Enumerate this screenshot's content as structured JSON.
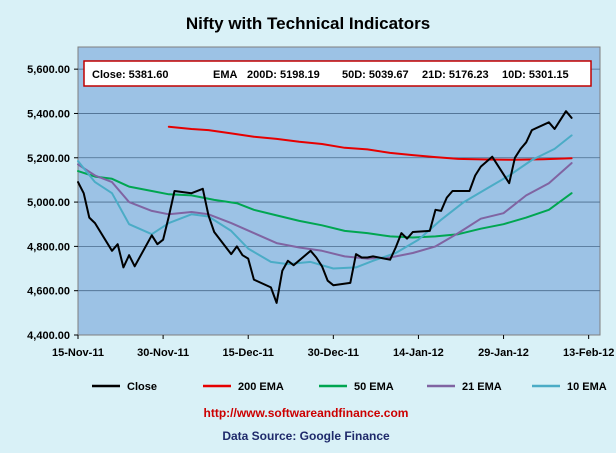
{
  "title": "Nifty with Technical Indicators",
  "info_box": {
    "close": "Close: 5381.60",
    "ema": "EMA",
    "d200": "200D: 5198.19",
    "d50": "50D: 5039.67",
    "d21": "21D: 5176.23",
    "d10": "10D: 5301.15"
  },
  "footer": {
    "url": "http://www.softwareandfinance.com",
    "source": "Data Source: Google Finance"
  },
  "colors": {
    "background": "#d9f1f7",
    "plot_area": "#9cc2e5",
    "grid": "#4a6b8c",
    "close": "#000000",
    "ema200": "#e60000",
    "ema50": "#00a651",
    "ema21": "#8064a2",
    "ema10": "#4bacc6",
    "info_border": "#c00000"
  },
  "chart_data": {
    "type": "line",
    "title": "Nifty with Technical Indicators",
    "xlabel": "",
    "ylabel": "",
    "ylim": [
      4400,
      5700
    ],
    "xlim": [
      "2011-11-15",
      "2012-02-15"
    ],
    "yticks": [
      4400,
      4600,
      4800,
      5000,
      5200,
      5400,
      5600
    ],
    "ytick_labels": [
      "4,400.00",
      "4,600.00",
      "4,800.00",
      "5,000.00",
      "5,200.00",
      "5,400.00",
      "5,600.00"
    ],
    "xtick_dates": [
      "2011-11-15",
      "2011-11-30",
      "2011-12-15",
      "2011-12-30",
      "2012-01-14",
      "2012-01-29",
      "2012-02-13"
    ],
    "xtick_labels": [
      "15-Nov-11",
      "30-Nov-11",
      "15-Dec-11",
      "30-Dec-11",
      "14-Jan-12",
      "29-Jan-12",
      "13-Feb-12"
    ],
    "grid": true,
    "legend_position": "bottom",
    "series": [
      {
        "name": "Close",
        "color_key": "close",
        "points": [
          [
            "2011-11-15",
            5090
          ],
          [
            "2011-11-16",
            5040
          ],
          [
            "2011-11-17",
            4930
          ],
          [
            "2011-11-18",
            4905
          ],
          [
            "2011-11-21",
            4780
          ],
          [
            "2011-11-22",
            4810
          ],
          [
            "2011-11-23",
            4705
          ],
          [
            "2011-11-24",
            4760
          ],
          [
            "2011-11-25",
            4710
          ],
          [
            "2011-11-28",
            4850
          ],
          [
            "2011-11-29",
            4810
          ],
          [
            "2011-11-30",
            4830
          ],
          [
            "2011-12-01",
            4935
          ],
          [
            "2011-12-02",
            5050
          ],
          [
            "2011-12-05",
            5040
          ],
          [
            "2011-12-07",
            5060
          ],
          [
            "2011-12-08",
            4940
          ],
          [
            "2011-12-09",
            4865
          ],
          [
            "2011-12-12",
            4765
          ],
          [
            "2011-12-13",
            4800
          ],
          [
            "2011-12-14",
            4760
          ],
          [
            "2011-12-15",
            4745
          ],
          [
            "2011-12-16",
            4650
          ],
          [
            "2011-12-19",
            4615
          ],
          [
            "2011-12-20",
            4545
          ],
          [
            "2011-12-21",
            4690
          ],
          [
            "2011-12-22",
            4735
          ],
          [
            "2011-12-23",
            4715
          ],
          [
            "2011-12-26",
            4780
          ],
          [
            "2011-12-27",
            4750
          ],
          [
            "2011-12-28",
            4710
          ],
          [
            "2011-12-29",
            4645
          ],
          [
            "2011-12-30",
            4625
          ],
          [
            "2012-01-02",
            4635
          ],
          [
            "2012-01-03",
            4765
          ],
          [
            "2012-01-04",
            4750
          ],
          [
            "2012-01-05",
            4750
          ],
          [
            "2012-01-06",
            4755
          ],
          [
            "2012-01-09",
            4740
          ],
          [
            "2012-01-10",
            4795
          ],
          [
            "2012-01-11",
            4860
          ],
          [
            "2012-01-12",
            4835
          ],
          [
            "2012-01-13",
            4865
          ],
          [
            "2012-01-16",
            4870
          ],
          [
            "2012-01-17",
            4965
          ],
          [
            "2012-01-18",
            4960
          ],
          [
            "2012-01-19",
            5020
          ],
          [
            "2012-01-20",
            5050
          ],
          [
            "2012-01-23",
            5050
          ],
          [
            "2012-01-24",
            5120
          ],
          [
            "2012-01-25",
            5160
          ],
          [
            "2012-01-27",
            5205
          ],
          [
            "2012-01-30",
            5085
          ],
          [
            "2012-01-31",
            5200
          ],
          [
            "2012-02-01",
            5240
          ],
          [
            "2012-02-02",
            5270
          ],
          [
            "2012-02-03",
            5325
          ],
          [
            "2012-02-06",
            5360
          ],
          [
            "2012-02-07",
            5330
          ],
          [
            "2012-02-08",
            5370
          ],
          [
            "2012-02-09",
            5410
          ],
          [
            "2012-02-10",
            5380
          ]
        ]
      },
      {
        "name": "200 EMA",
        "color_key": "ema200",
        "points": [
          [
            "2011-12-01",
            5340
          ],
          [
            "2011-12-05",
            5330
          ],
          [
            "2011-12-08",
            5325
          ],
          [
            "2011-12-12",
            5310
          ],
          [
            "2011-12-16",
            5295
          ],
          [
            "2011-12-20",
            5285
          ],
          [
            "2011-12-24",
            5272
          ],
          [
            "2011-12-28",
            5262
          ],
          [
            "2012-01-01",
            5245
          ],
          [
            "2012-01-05",
            5238
          ],
          [
            "2012-01-09",
            5222
          ],
          [
            "2012-01-13",
            5212
          ],
          [
            "2012-01-17",
            5203
          ],
          [
            "2012-01-21",
            5195
          ],
          [
            "2012-01-26",
            5192
          ],
          [
            "2012-01-31",
            5191
          ],
          [
            "2012-02-05",
            5193
          ],
          [
            "2012-02-10",
            5198
          ]
        ]
      },
      {
        "name": "50 EMA",
        "color_key": "ema50",
        "points": [
          [
            "2011-11-15",
            5140
          ],
          [
            "2011-11-18",
            5115
          ],
          [
            "2011-11-21",
            5105
          ],
          [
            "2011-11-24",
            5070
          ],
          [
            "2011-11-28",
            5050
          ],
          [
            "2011-12-01",
            5035
          ],
          [
            "2011-12-05",
            5030
          ],
          [
            "2011-12-09",
            5010
          ],
          [
            "2011-12-13",
            4995
          ],
          [
            "2011-12-16",
            4965
          ],
          [
            "2011-12-20",
            4940
          ],
          [
            "2011-12-24",
            4915
          ],
          [
            "2011-12-28",
            4895
          ],
          [
            "2012-01-01",
            4870
          ],
          [
            "2012-01-05",
            4860
          ],
          [
            "2012-01-09",
            4845
          ],
          [
            "2012-01-13",
            4840
          ],
          [
            "2012-01-17",
            4845
          ],
          [
            "2012-01-21",
            4855
          ],
          [
            "2012-01-25",
            4880
          ],
          [
            "2012-01-29",
            4900
          ],
          [
            "2012-02-02",
            4930
          ],
          [
            "2012-02-06",
            4965
          ],
          [
            "2012-02-10",
            5040
          ]
        ]
      },
      {
        "name": "21 EMA",
        "color_key": "ema21",
        "points": [
          [
            "2011-11-15",
            5170
          ],
          [
            "2011-11-18",
            5120
          ],
          [
            "2011-11-21",
            5090
          ],
          [
            "2011-11-24",
            5000
          ],
          [
            "2011-11-28",
            4960
          ],
          [
            "2011-12-01",
            4945
          ],
          [
            "2011-12-05",
            4955
          ],
          [
            "2011-12-08",
            4945
          ],
          [
            "2011-12-12",
            4905
          ],
          [
            "2011-12-16",
            4860
          ],
          [
            "2011-12-20",
            4815
          ],
          [
            "2011-12-24",
            4795
          ],
          [
            "2011-12-28",
            4780
          ],
          [
            "2012-01-01",
            4755
          ],
          [
            "2012-01-05",
            4745
          ],
          [
            "2012-01-09",
            4750
          ],
          [
            "2012-01-13",
            4770
          ],
          [
            "2012-01-17",
            4800
          ],
          [
            "2012-01-21",
            4860
          ],
          [
            "2012-01-25",
            4925
          ],
          [
            "2012-01-29",
            4950
          ],
          [
            "2012-02-02",
            5030
          ],
          [
            "2012-02-06",
            5085
          ],
          [
            "2012-02-10",
            5176
          ]
        ]
      },
      {
        "name": "10 EMA",
        "color_key": "ema10",
        "points": [
          [
            "2011-11-15",
            5185
          ],
          [
            "2011-11-18",
            5090
          ],
          [
            "2011-11-21",
            5040
          ],
          [
            "2011-11-24",
            4900
          ],
          [
            "2011-11-28",
            4855
          ],
          [
            "2011-12-01",
            4905
          ],
          [
            "2011-12-05",
            4945
          ],
          [
            "2011-12-08",
            4935
          ],
          [
            "2011-12-12",
            4870
          ],
          [
            "2011-12-15",
            4790
          ],
          [
            "2011-12-19",
            4730
          ],
          [
            "2011-12-22",
            4720
          ],
          [
            "2011-12-26",
            4730
          ],
          [
            "2011-12-30",
            4700
          ],
          [
            "2012-01-03",
            4705
          ],
          [
            "2012-01-06",
            4735
          ],
          [
            "2012-01-10",
            4770
          ],
          [
            "2012-01-14",
            4830
          ],
          [
            "2012-01-18",
            4920
          ],
          [
            "2012-01-22",
            5000
          ],
          [
            "2012-01-26",
            5060
          ],
          [
            "2012-01-30",
            5120
          ],
          [
            "2012-02-03",
            5190
          ],
          [
            "2012-02-07",
            5240
          ],
          [
            "2012-02-10",
            5301
          ]
        ]
      }
    ]
  }
}
